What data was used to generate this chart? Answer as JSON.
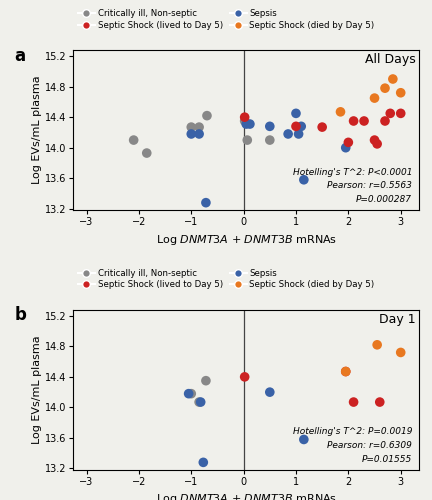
{
  "panel_a": {
    "title": "All Days",
    "grey_x": [
      -2.1,
      -1.85,
      -1.0,
      -0.85,
      -0.7,
      0.02,
      0.07,
      0.5
    ],
    "grey_y": [
      14.1,
      13.93,
      14.27,
      14.27,
      14.42,
      14.35,
      14.1,
      14.1
    ],
    "blue_x": [
      -1.0,
      -0.85,
      0.05,
      0.12,
      0.5,
      0.85,
      1.0,
      1.05,
      1.1,
      1.95,
      -0.72,
      1.15
    ],
    "blue_y": [
      14.18,
      14.18,
      14.31,
      14.31,
      14.28,
      14.18,
      14.45,
      14.18,
      14.28,
      14.0,
      13.28,
      13.58
    ],
    "red_x": [
      0.02,
      1.0,
      1.5,
      2.0,
      2.1,
      2.3,
      2.5,
      2.7,
      2.8,
      3.0,
      2.55
    ],
    "red_y": [
      14.4,
      14.28,
      14.27,
      14.07,
      14.35,
      14.35,
      14.1,
      14.35,
      14.45,
      14.45,
      14.05
    ],
    "orange_x": [
      1.85,
      2.5,
      2.7,
      2.85,
      3.0
    ],
    "orange_y": [
      14.47,
      14.65,
      14.78,
      14.9,
      14.72
    ],
    "annot1": "Hotelling's T^2: ",
    "annot1b": "P<0.0001",
    "annot2": "Pearson: ",
    "annot2b": "r",
    "annot2c": "=0.5563",
    "annot3": "P",
    "annot3b": "=0.000287"
  },
  "panel_b": {
    "title": "Day 1",
    "grey_x": [
      -0.72,
      -1.0,
      -0.85
    ],
    "grey_y": [
      14.35,
      14.18,
      14.07
    ],
    "blue_x": [
      -1.05,
      -0.82,
      0.5,
      1.15,
      -0.77
    ],
    "blue_y": [
      14.18,
      14.07,
      14.2,
      13.58,
      13.28
    ],
    "red_x": [
      0.02,
      1.95,
      2.1,
      2.6
    ],
    "red_y": [
      14.4,
      14.47,
      14.07,
      14.07
    ],
    "orange_x": [
      1.95,
      2.55,
      3.0
    ],
    "orange_y": [
      14.47,
      14.82,
      14.72
    ],
    "annot1": "Hotelling's T^2: ",
    "annot1b": "P=0.0019",
    "annot2": "Pearson: ",
    "annot2b": "r",
    "annot2c": "=0.6309",
    "annot3": "P",
    "annot3b": "=0.01555"
  },
  "xlim": [
    -3.25,
    3.35
  ],
  "ylim": [
    13.18,
    15.28
  ],
  "xticks": [
    -3,
    -2,
    -1,
    0,
    1,
    2,
    3
  ],
  "yticks": [
    13.2,
    13.6,
    14.0,
    14.4,
    14.8,
    15.2
  ],
  "ylabel": "Log EVs/mL plasma",
  "color_grey": "#888888",
  "color_blue": "#3a62a7",
  "color_red": "#cc2222",
  "color_orange": "#e87820",
  "marker_size": 48,
  "bg_color": "#f0f0eb",
  "legend_labels": [
    "Critically ill, Non-septic",
    "Sepsis",
    "Septic Shock (lived to Day 5)",
    "Septic Shock (died by Day 5)"
  ]
}
